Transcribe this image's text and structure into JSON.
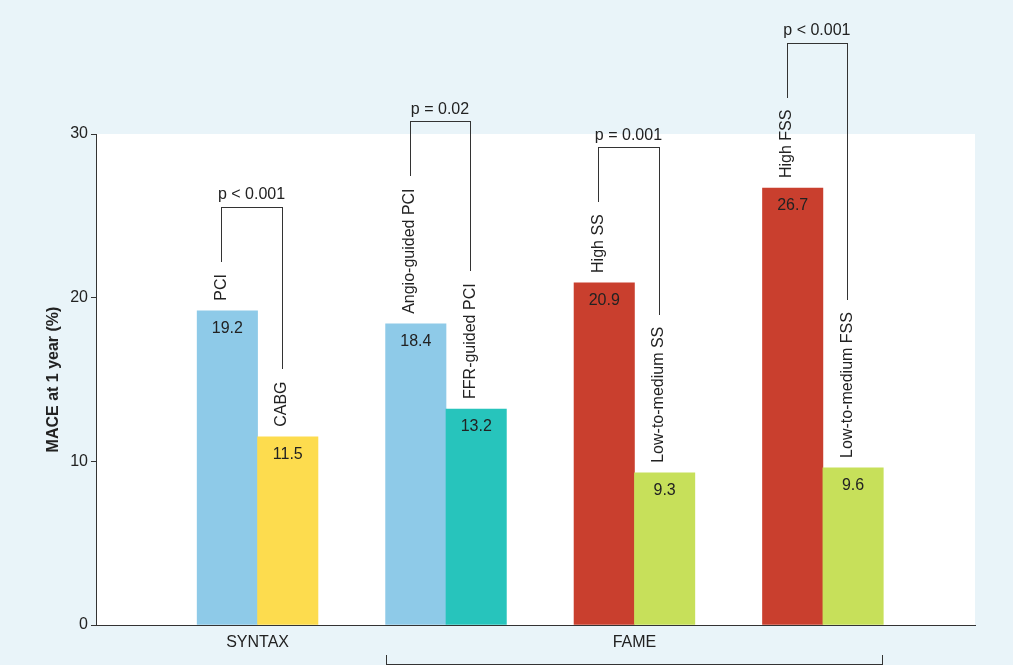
{
  "chart_data": {
    "type": "bar",
    "ylabel": "MACE at 1 year (%)",
    "categories": [
      "PCI",
      "CABG",
      "Angio-guided PCI",
      "FFR-guided PCI",
      "High SS",
      "Low-to-medium SS",
      "High FSS",
      "Low-to-medium FSS"
    ],
    "values": [
      19.2,
      11.5,
      18.4,
      13.2,
      20.9,
      9.3,
      26.7,
      9.6
    ],
    "colors": [
      "#8ecae8",
      "#fddc4e",
      "#8ecae8",
      "#27c4bc",
      "#c93f2e",
      "#c7e05a",
      "#c93f2e",
      "#c7e05a"
    ],
    "ylim": [
      0,
      30
    ],
    "yticks": [
      0,
      10,
      20,
      30
    ],
    "grid": false,
    "legend": false,
    "data_labels": true,
    "annotations": [
      "p < 0.001",
      "p = 0.02",
      "p = 0.001",
      "p < 0.001",
      "SYNTAX",
      "FAME"
    ]
  }
}
